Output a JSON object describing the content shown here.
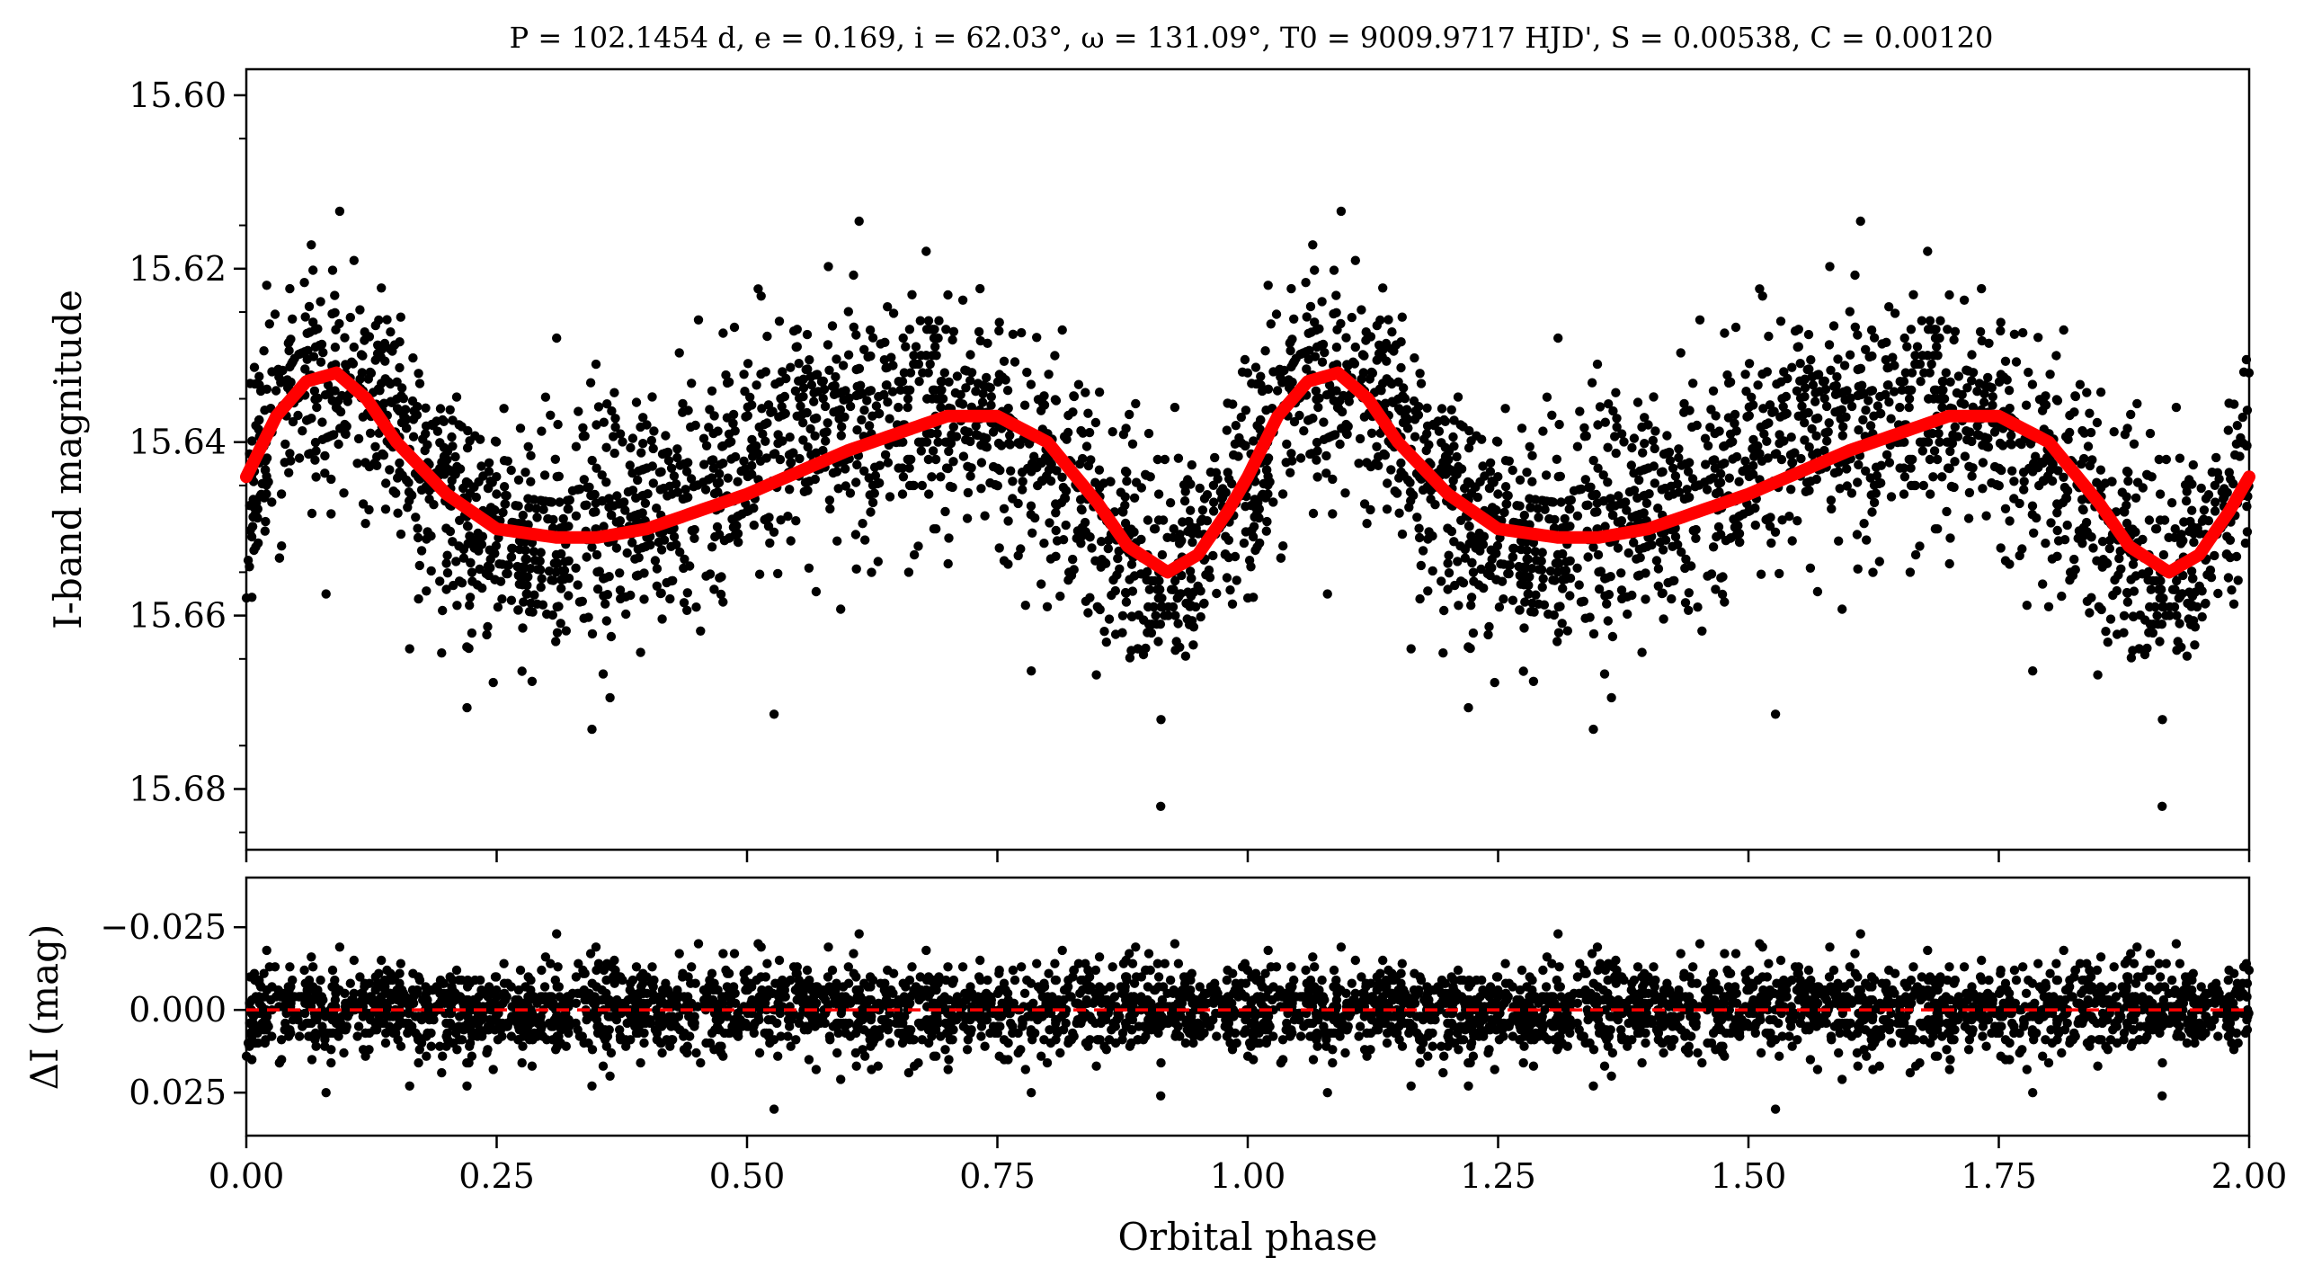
{
  "chart_data": [
    {
      "type": "scatter",
      "panel": "light-curve",
      "title": "P = 102.1454 d, e = 0.169, i = 62.03°, ω = 131.09°, T0 = 9009.9717 HJD', S = 0.00538, C = 0.00120",
      "xlabel": "Orbital phase",
      "ylabel": "I-band magnitude",
      "xlim": [
        0.0,
        2.0
      ],
      "ylim": [
        15.687,
        15.597
      ],
      "y_inverted": true,
      "x_ticks": [
        "0.00",
        "0.25",
        "0.50",
        "0.75",
        "1.00",
        "1.25",
        "1.50",
        "1.75",
        "2.00"
      ],
      "y_ticks": [
        "15.60",
        "15.62",
        "15.64",
        "15.66",
        "15.68"
      ],
      "grid": false,
      "legend": "none",
      "series": [
        {
          "kind": "points",
          "color": "#000000",
          "description_x": [
            0.0,
            0.05,
            0.09,
            0.15,
            0.2,
            0.25,
            0.31,
            0.35,
            0.4,
            0.45,
            0.5,
            0.55,
            0.6,
            0.65,
            0.7,
            0.75,
            0.8,
            0.85,
            0.9,
            0.93,
            0.96,
            1.0,
            1.05,
            1.09,
            1.15,
            1.2,
            1.25,
            1.31,
            1.35,
            1.4,
            1.45,
            1.5,
            1.55,
            1.6,
            1.65,
            1.7,
            1.75,
            1.8,
            1.85,
            1.9,
            1.93,
            1.96,
            2.0
          ],
          "trend_y": [
            15.644,
            15.634,
            15.632,
            15.639,
            15.646,
            15.65,
            15.651,
            15.65,
            15.648,
            15.646,
            15.643,
            15.64,
            15.638,
            15.636,
            15.636,
            15.638,
            15.643,
            15.65,
            15.656,
            15.656,
            15.651,
            15.644,
            15.634,
            15.632,
            15.639,
            15.646,
            15.65,
            15.651,
            15.65,
            15.648,
            15.646,
            15.643,
            15.64,
            15.638,
            15.636,
            15.636,
            15.638,
            15.643,
            15.65,
            15.656,
            15.656,
            15.651,
            15.644
          ],
          "scatter_sigma": 0.007,
          "n_points_per_cycle": 1900
        },
        {
          "kind": "model",
          "color": "#ff0000",
          "x": [
            0.0,
            0.03,
            0.06,
            0.09,
            0.12,
            0.15,
            0.2,
            0.25,
            0.31,
            0.35,
            0.4,
            0.5,
            0.6,
            0.7,
            0.75,
            0.8,
            0.85,
            0.88,
            0.92,
            0.95,
            0.98,
            1.0,
            1.03,
            1.06,
            1.09,
            1.12,
            1.15,
            1.2,
            1.25,
            1.31,
            1.35,
            1.4,
            1.5,
            1.6,
            1.7,
            1.75,
            1.8,
            1.85,
            1.88,
            1.92,
            1.95,
            1.98,
            2.0
          ],
          "y": [
            15.644,
            15.637,
            15.633,
            15.632,
            15.635,
            15.64,
            15.646,
            15.65,
            15.651,
            15.651,
            15.65,
            15.646,
            15.641,
            15.637,
            15.637,
            15.64,
            15.647,
            15.652,
            15.655,
            15.653,
            15.648,
            15.644,
            15.637,
            15.633,
            15.632,
            15.635,
            15.64,
            15.646,
            15.65,
            15.651,
            15.651,
            15.65,
            15.646,
            15.641,
            15.637,
            15.637,
            15.64,
            15.647,
            15.652,
            15.655,
            15.653,
            15.648,
            15.644
          ]
        }
      ]
    },
    {
      "type": "scatter",
      "panel": "residuals",
      "xlabel": "Orbital phase",
      "ylabel": "ΔI (mag)",
      "xlim": [
        0.0,
        2.0
      ],
      "ylim": [
        0.038,
        -0.04
      ],
      "y_inverted": true,
      "x_ticks": [
        "0.00",
        "0.25",
        "0.50",
        "0.75",
        "1.00",
        "1.25",
        "1.50",
        "1.75",
        "2.00"
      ],
      "y_ticks": [
        "−0.025",
        "0.000",
        "0.025"
      ],
      "y_tick_values": [
        -0.025,
        0.0,
        0.025
      ],
      "grid": false,
      "legend": "none",
      "series": [
        {
          "kind": "points",
          "color": "#000000",
          "mean": 0.0,
          "scatter_sigma": 0.0065,
          "n_points_per_cycle": 1900
        },
        {
          "kind": "zero-line",
          "color": "#ff0000",
          "style": "dashed",
          "y": 0.0
        }
      ]
    }
  ]
}
